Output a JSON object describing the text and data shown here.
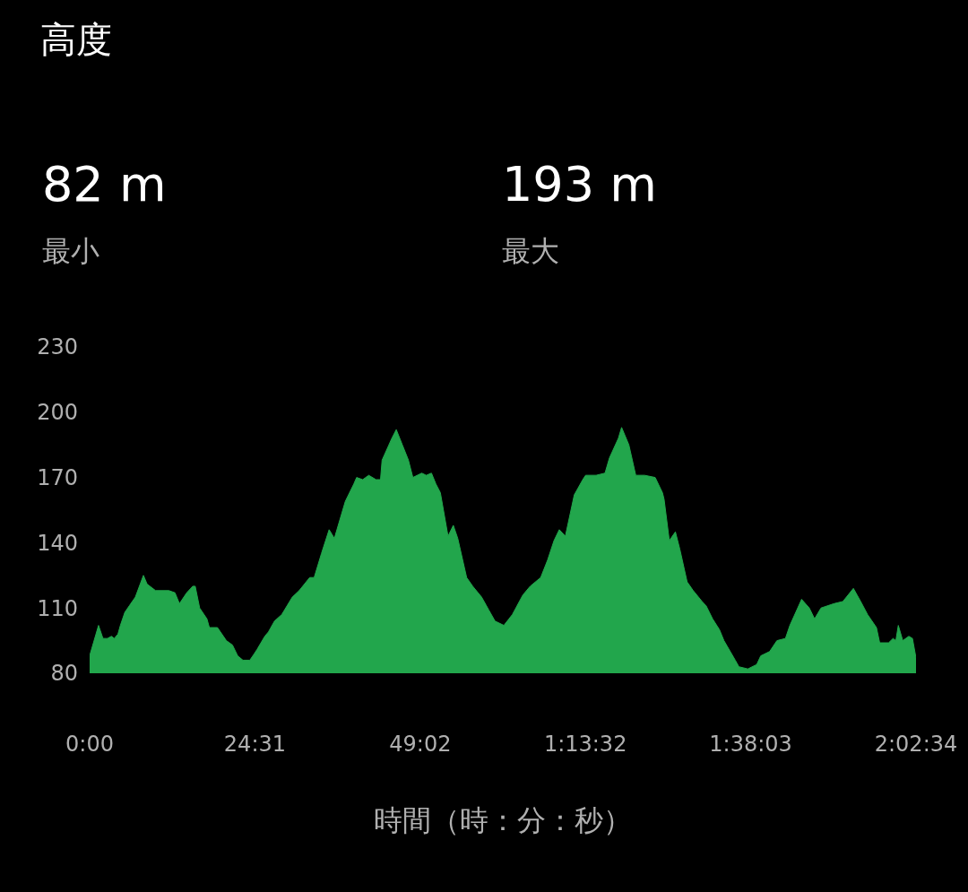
{
  "chart_data": {
    "type": "area",
    "title": "高度",
    "xlabel": "時間（時：分：秒）",
    "annotations": [
      "82 m",
      "最小",
      "193 m",
      "最大"
    ],
    "x": [
      0,
      1.32,
      1.98,
      2.64,
      3.24,
      3.66,
      4.2,
      4.56,
      5.22,
      5.88,
      6.78,
      7.98,
      8.52,
      9.78,
      11.76,
      12.66,
      13.32,
      14.4,
      15.3,
      15.66,
      16.32,
      17.4,
      17.76,
      18.96,
      20.28,
      21.18,
      21.96,
      22.74,
      23.76,
      24.42,
      24.84,
      25.98,
      26.52,
      27.42,
      28.5,
      30.06,
      31.08,
      32.64,
      33.3,
      34.38,
      35.52,
      36.3,
      37.92,
      39.18,
      39.6,
      40.5,
      41.4,
      42.48,
      43.14,
      43.38,
      44.82,
      45.48,
      46.38,
      47.28,
      47.94,
      49.26,
      49.92,
      50.7,
      51.36,
      52.02,
      53.16,
      53.94,
      54.6,
      55.92,
      56.82,
      58.14,
      59.22,
      60.12,
      61.44,
      62.7,
      64.26,
      65.34,
      66.9,
      67.92,
      68.88,
      69.66,
      70.56,
      71.88,
      73.14,
      73.56,
      75.12,
      76.44,
      77.1,
      78.42,
      78.9,
      79.98,
      81,
      82.32,
      83.88,
      84.96,
      85.2,
      85.98,
      86.88,
      87.54,
      88.62,
      89.52,
      90.84,
      91.44,
      92.4,
      93.42,
      94.08,
      95.76,
      96.3,
      97.62,
      98.94,
      99.54,
      100.86,
      101.94,
      103.2,
      103.86,
      105.6,
      106.74,
      107.52,
      108.48,
      110.4,
      111.72,
      113.28,
      114.36,
      115.38,
      116.7,
      117.18,
      118.5,
      119.16,
      119.58,
      119.94,
      120.6,
      121.5,
      122.04,
      122.5667
    ],
    "series": [
      {
        "color": "#22a64c",
        "values": [
          88,
          102,
          96,
          96,
          97,
          96,
          98,
          102,
          108,
          111,
          115,
          125,
          121,
          118,
          118,
          117,
          112,
          117,
          120,
          120,
          110,
          105,
          101,
          101,
          95,
          93,
          88,
          86,
          86,
          89,
          91,
          97,
          99,
          104,
          107,
          115,
          118,
          124,
          124,
          135,
          146,
          142,
          159,
          167,
          170,
          169,
          171,
          169,
          169,
          178,
          188,
          192,
          185,
          178,
          170,
          172,
          171,
          172,
          167,
          163,
          143,
          148,
          142,
          124,
          120,
          115,
          109,
          104,
          102,
          107,
          116,
          120,
          124,
          132,
          141,
          146,
          143,
          162,
          169,
          171,
          171,
          172,
          179,
          188,
          193,
          185,
          171,
          171,
          170,
          163,
          160,
          141,
          145,
          137,
          122,
          118,
          113,
          111,
          105,
          100,
          95,
          86,
          83,
          82,
          84,
          88,
          90,
          95,
          96,
          102,
          114,
          110,
          105,
          110,
          112,
          113,
          119,
          113,
          107,
          101,
          94,
          94,
          96,
          95,
          102,
          95,
          97,
          96,
          87
        ]
      }
    ],
    "xlim": [
      0,
      122.5667
    ],
    "xticks": [
      {
        "value": 0,
        "label": "0:00"
      },
      {
        "value": 24.5167,
        "label": "24:31"
      },
      {
        "value": 49.0333,
        "label": "49:02"
      },
      {
        "value": 73.5333,
        "label": "1:13:32"
      },
      {
        "value": 98.05,
        "label": "1:38:03"
      },
      {
        "value": 122.5667,
        "label": "2:02:34"
      }
    ],
    "ylim": [
      80,
      230
    ],
    "yticks": [
      80,
      110,
      140,
      170,
      200,
      230
    ],
    "grid": false,
    "legend": false
  }
}
